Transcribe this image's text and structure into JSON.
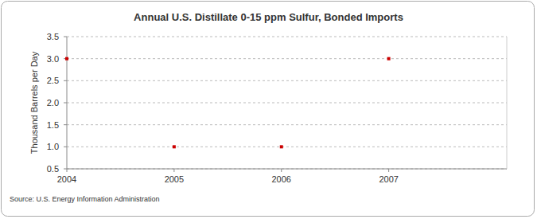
{
  "chart_data": {
    "type": "scatter",
    "title": "Annual U.S. Distillate 0-15 ppm Sulfur, Bonded Imports",
    "y_label": "Thousand Barrels per Day",
    "source": "Source: U.S. Energy Information Administration",
    "x": [
      2004,
      2005,
      2006,
      2007
    ],
    "series": [
      {
        "name": "Bonded Imports",
        "color": "#cc0000",
        "marker": "square",
        "values": [
          3,
          1,
          1,
          3
        ]
      }
    ],
    "xlim": [
      2004,
      2008.1
    ],
    "xticks": [
      2004,
      2005,
      2006,
      2007
    ],
    "ylim": [
      0.5,
      3.5
    ],
    "yticks": [
      0.5,
      {
        "value": 1,
        "label": "1.0"
      },
      1.5,
      {
        "value": 2,
        "label": "2.0"
      },
      2.5,
      {
        "value": 3,
        "label": "3.0"
      },
      3.5
    ],
    "grid": true
  }
}
